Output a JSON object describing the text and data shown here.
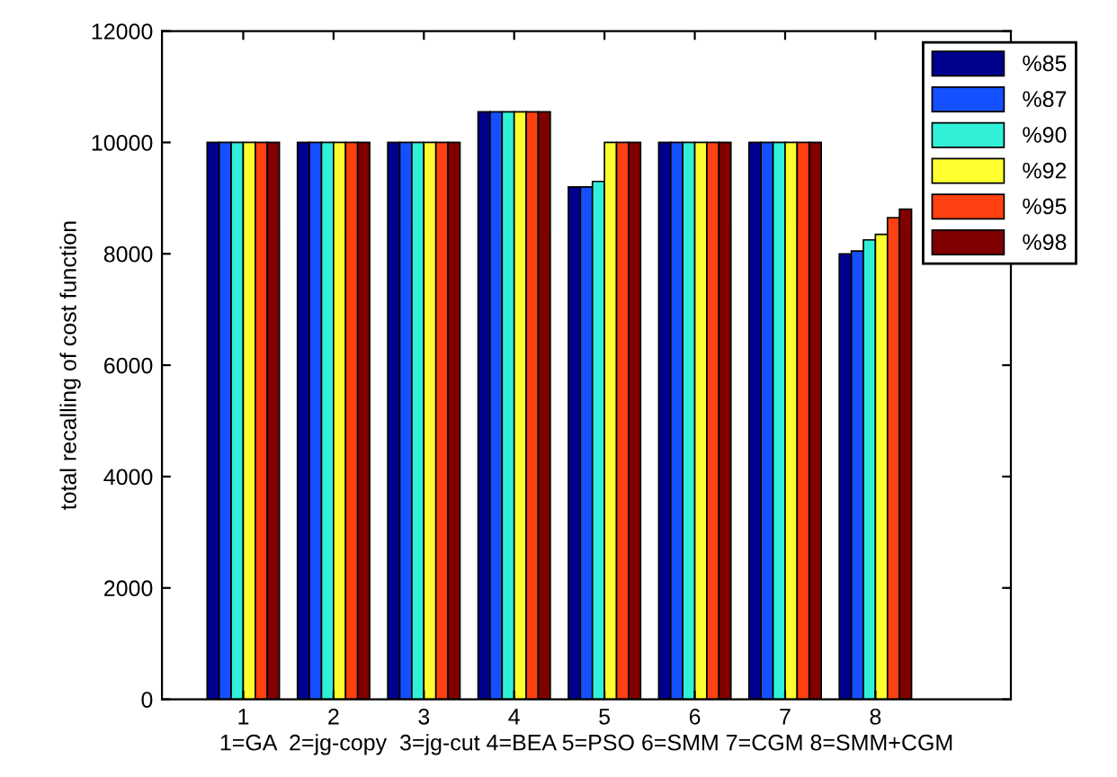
{
  "chart_data": {
    "type": "bar",
    "xlabel": "1=GA  2=jg-copy  3=jg-cut 4=BEA 5=PSO 6=SMM 7=CGM 8=SMM+CGM",
    "ylabel": "total recalling of cost function",
    "categories": [
      "1",
      "2",
      "3",
      "4",
      "5",
      "6",
      "7",
      "8"
    ],
    "series": [
      {
        "name": "%85",
        "color": "#00008f",
        "values": [
          10000,
          10000,
          10000,
          10550,
          9200,
          10000,
          10000,
          8000
        ]
      },
      {
        "name": "%87",
        "color": "#1450ff",
        "values": [
          10000,
          10000,
          10000,
          10550,
          9200,
          10000,
          10000,
          8050
        ]
      },
      {
        "name": "%90",
        "color": "#30f0d8",
        "values": [
          10000,
          10000,
          10000,
          10550,
          9300,
          10000,
          10000,
          8250
        ]
      },
      {
        "name": "%92",
        "color": "#ffff30",
        "values": [
          10000,
          10000,
          10000,
          10550,
          10000,
          10000,
          10000,
          8350
        ]
      },
      {
        "name": "%95",
        "color": "#ff4010",
        "values": [
          10000,
          10000,
          10000,
          10550,
          10000,
          10000,
          10000,
          8650
        ]
      },
      {
        "name": "%98",
        "color": "#800000",
        "values": [
          10000,
          10000,
          10000,
          10550,
          10000,
          10000,
          10000,
          8800
        ]
      }
    ],
    "ylim": [
      0,
      12000
    ],
    "yticks": [
      0,
      2000,
      4000,
      6000,
      8000,
      10000,
      12000
    ],
    "legend": "top right",
    "grid": false
  }
}
